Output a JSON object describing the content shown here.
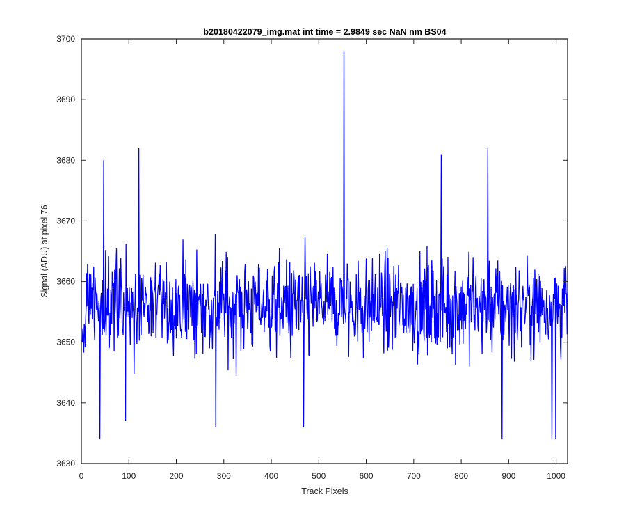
{
  "chart_data": {
    "type": "line",
    "title": "b20180422079_img.mat int time = 2.9849 sec  NaN nm BS04",
    "xlabel": "Track Pixels",
    "ylabel": "Signal (ADU) at pixel 76",
    "xlim": [
      0,
      1024
    ],
    "ylim": [
      3630,
      3700
    ],
    "xticks": [
      0,
      100,
      200,
      300,
      400,
      500,
      600,
      700,
      800,
      900,
      1000
    ],
    "yticks": [
      3630,
      3640,
      3650,
      3660,
      3670,
      3680,
      3690,
      3700
    ],
    "grid": false,
    "line_color": "#0000ff",
    "series": [
      {
        "noise_mean": 3656,
        "noise_range": [
          3634,
          3698
        ],
        "n_points": 1024,
        "highlights": [
          {
            "x": 38,
            "y": 3634
          },
          {
            "x": 46,
            "y": 3680
          },
          {
            "x": 92,
            "y": 3637
          },
          {
            "x": 120,
            "y": 3682
          },
          {
            "x": 282,
            "y": 3636
          },
          {
            "x": 467,
            "y": 3636
          },
          {
            "x": 552,
            "y": 3698
          },
          {
            "x": 757,
            "y": 3681
          },
          {
            "x": 855,
            "y": 3682
          },
          {
            "x": 885,
            "y": 3634
          },
          {
            "x": 990,
            "y": 3634
          },
          {
            "x": 998,
            "y": 3634
          }
        ]
      }
    ]
  }
}
